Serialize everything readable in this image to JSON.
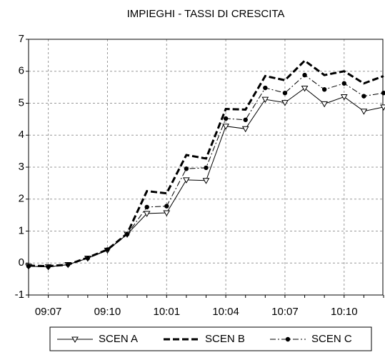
{
  "chart_data": {
    "type": "line",
    "title": "IMPIEGHI - TASSI DI CRESCITA",
    "categories": [
      null,
      "09:07",
      null,
      null,
      "09:10",
      null,
      null,
      "10:01",
      null,
      null,
      "10:04",
      null,
      null,
      "10:07",
      null,
      null,
      "10:10",
      null,
      null
    ],
    "series": [
      {
        "name": "SCEN A",
        "color": "#000000",
        "line_style": "solid",
        "marker": "triangle",
        "values": [
          -0.1,
          -0.12,
          -0.05,
          0.15,
          0.4,
          0.9,
          1.55,
          1.57,
          2.6,
          2.58,
          4.28,
          4.2,
          5.12,
          5.02,
          5.47,
          4.98,
          5.2,
          4.75,
          4.88
        ]
      },
      {
        "name": "SCEN B",
        "color": "#000000",
        "line_style": "dashed",
        "marker": "none",
        "values": [
          -0.08,
          -0.1,
          -0.05,
          0.17,
          0.42,
          0.92,
          2.25,
          2.18,
          3.38,
          3.27,
          4.82,
          4.8,
          5.85,
          5.72,
          6.33,
          5.88,
          6.0,
          5.62,
          5.85
        ]
      },
      {
        "name": "SCEN C",
        "color": "#000000",
        "line_style": "dashdot",
        "marker": "circle",
        "values": [
          -0.1,
          -0.12,
          -0.05,
          0.15,
          0.42,
          0.9,
          1.75,
          1.78,
          2.95,
          2.98,
          4.52,
          4.48,
          5.48,
          5.32,
          5.88,
          5.43,
          5.62,
          5.22,
          5.32
        ]
      }
    ],
    "ylim": [
      -1,
      7
    ],
    "yticks": [
      -1,
      0,
      1,
      2,
      3,
      4,
      5,
      6,
      7
    ],
    "grid": true,
    "legend": "bottom"
  }
}
